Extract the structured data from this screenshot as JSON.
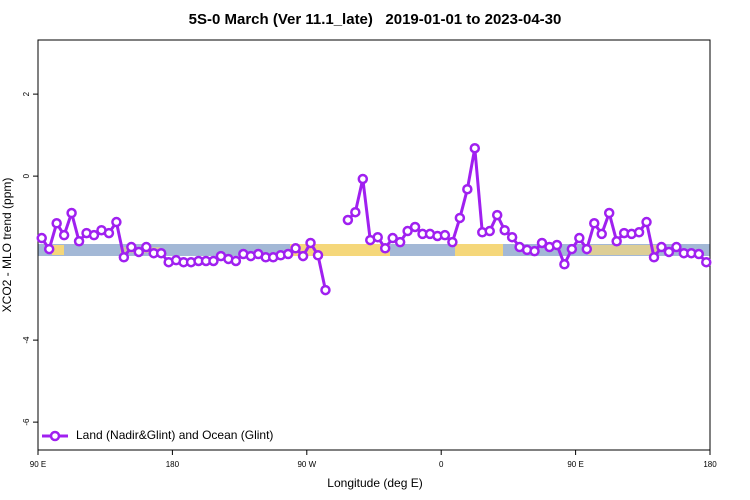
{
  "chart_data": {
    "type": "line",
    "title": "5S-0 March (Ver 11.1_late)   2019-01-01 to 2023-04-30",
    "x_label": "Longitude (deg E)",
    "y_label": "XCO2 - MLO trend (ppm)",
    "xlim": [
      90,
      540
    ],
    "xticks": [
      {
        "value": 90,
        "label": "90 E"
      },
      {
        "value": 180,
        "label": "180"
      },
      {
        "value": 270,
        "label": "90 W"
      },
      {
        "value": 360,
        "label": "0"
      },
      {
        "value": 450,
        "label": "90 E"
      },
      {
        "value": 540,
        "label": "180"
      }
    ],
    "ylim": [
      -6.68,
      3.32
    ],
    "yticks": [
      2,
      0,
      -4,
      -6
    ],
    "legend": "bottom-left",
    "x": [
      92.5,
      97.5,
      102.5,
      107.5,
      112.5,
      117.5,
      122.5,
      127.5,
      132.5,
      137.5,
      142.5,
      147.5,
      152.5,
      157.5,
      162.5,
      167.5,
      172.5,
      177.5,
      182.5,
      187.5,
      192.5,
      197.5,
      202.5,
      207.5,
      212.5,
      217.5,
      222.5,
      227.5,
      232.5,
      237.5,
      242.5,
      247.5,
      252.5,
      257.5,
      262.5,
      267.5,
      272.5,
      277.5,
      282.5,
      287.5,
      292.5,
      297.5,
      302.5,
      307.5,
      312.5,
      317.5,
      322.5,
      327.5,
      332.5,
      337.5,
      342.5,
      347.5,
      352.5,
      357.5,
      362.5,
      367.5,
      372.5,
      377.5,
      382.5,
      387.5,
      392.5,
      397.5,
      402.5,
      407.5,
      412.5,
      417.5,
      422.5,
      427.5,
      432.5,
      437.5,
      442.5,
      447.5,
      452.5,
      457.5,
      462.5,
      467.5,
      472.5,
      477.5,
      482.5,
      487.5,
      492.5,
      497.5,
      502.5,
      507.5,
      512.5,
      517.5,
      522.5,
      527.5,
      532.5,
      537.5
    ],
    "series": [
      {
        "name": "Land (Nadir&Glint) and Ocean (Glint)",
        "color": "#a020f0",
        "values": [
          -1.51,
          -1.78,
          -1.15,
          -1.44,
          -0.9,
          -1.59,
          -1.39,
          -1.44,
          -1.32,
          -1.39,
          -1.12,
          -1.98,
          -1.73,
          -1.85,
          -1.73,
          -1.88,
          -1.88,
          -2.1,
          -2.05,
          -2.1,
          -2.1,
          -2.07,
          -2.07,
          -2.07,
          -1.95,
          -2.02,
          -2.07,
          -1.9,
          -1.95,
          -1.9,
          -1.98,
          -1.98,
          -1.93,
          -1.9,
          -1.76,
          -1.95,
          -1.63,
          -1.93,
          -2.78,
          null,
          null,
          -1.07,
          -0.88,
          -0.07,
          -1.56,
          -1.49,
          -1.76,
          -1.51,
          -1.61,
          -1.34,
          -1.24,
          -1.41,
          -1.41,
          -1.46,
          -1.44,
          -1.61,
          -1.02,
          -0.32,
          0.68,
          -1.37,
          -1.34,
          -0.95,
          -1.32,
          -1.49,
          -1.73,
          -1.8,
          -1.83,
          -1.63,
          -1.73,
          -1.68,
          -2.15,
          -1.78,
          -1.51,
          -1.78,
          -1.15,
          -1.41,
          -0.9,
          -1.59,
          -1.39,
          -1.41,
          -1.37,
          -1.12,
          -1.98,
          -1.73,
          -1.85,
          -1.73,
          -1.88,
          -1.88,
          -1.9,
          -2.1
        ]
      }
    ]
  }
}
